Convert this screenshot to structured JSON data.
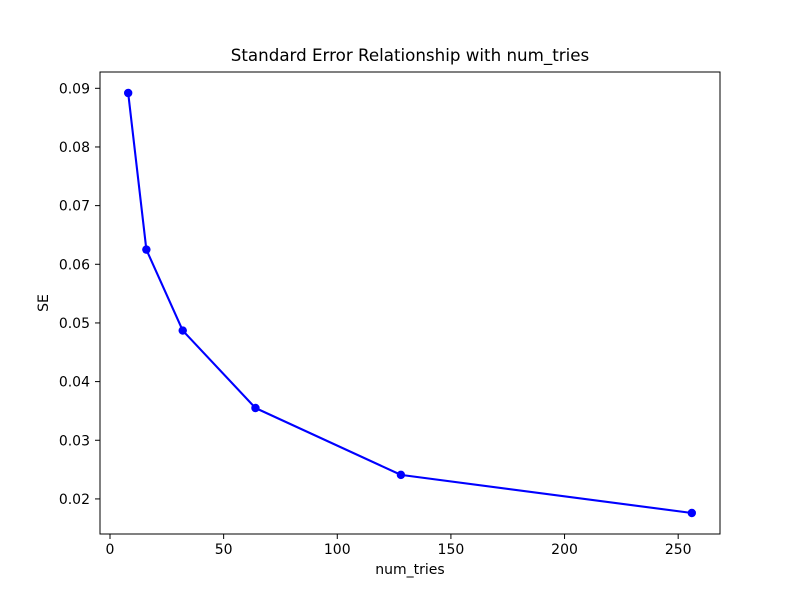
{
  "figure": {
    "background": "#ffffff",
    "spine_color": "#000000",
    "text_color": "#000000"
  },
  "chart_data": {
    "type": "line",
    "title": "Standard Error Relationship with num_tries",
    "xlabel": "num_tries",
    "ylabel": "SE",
    "x": [
      8,
      16,
      32,
      64,
      128,
      256
    ],
    "y": [
      0.0892,
      0.0625,
      0.0487,
      0.0355,
      0.0241,
      0.0176
    ],
    "line_color": "#0000ff",
    "marker": "circle",
    "marker_color": "#0000ff",
    "grid": false,
    "legend": "none",
    "xlim": [
      -4.4,
      268.4
    ],
    "ylim": [
      0.01402,
      0.09278
    ],
    "xticks": [
      0,
      50,
      100,
      150,
      200,
      250
    ],
    "xtick_labels": [
      "0",
      "50",
      "100",
      "150",
      "200",
      "250"
    ],
    "yticks": [
      0.02,
      0.03,
      0.04,
      0.05,
      0.06,
      0.07,
      0.08,
      0.09
    ],
    "ytick_labels": [
      "0.02",
      "0.03",
      "0.04",
      "0.05",
      "0.06",
      "0.07",
      "0.08",
      "0.09"
    ]
  }
}
